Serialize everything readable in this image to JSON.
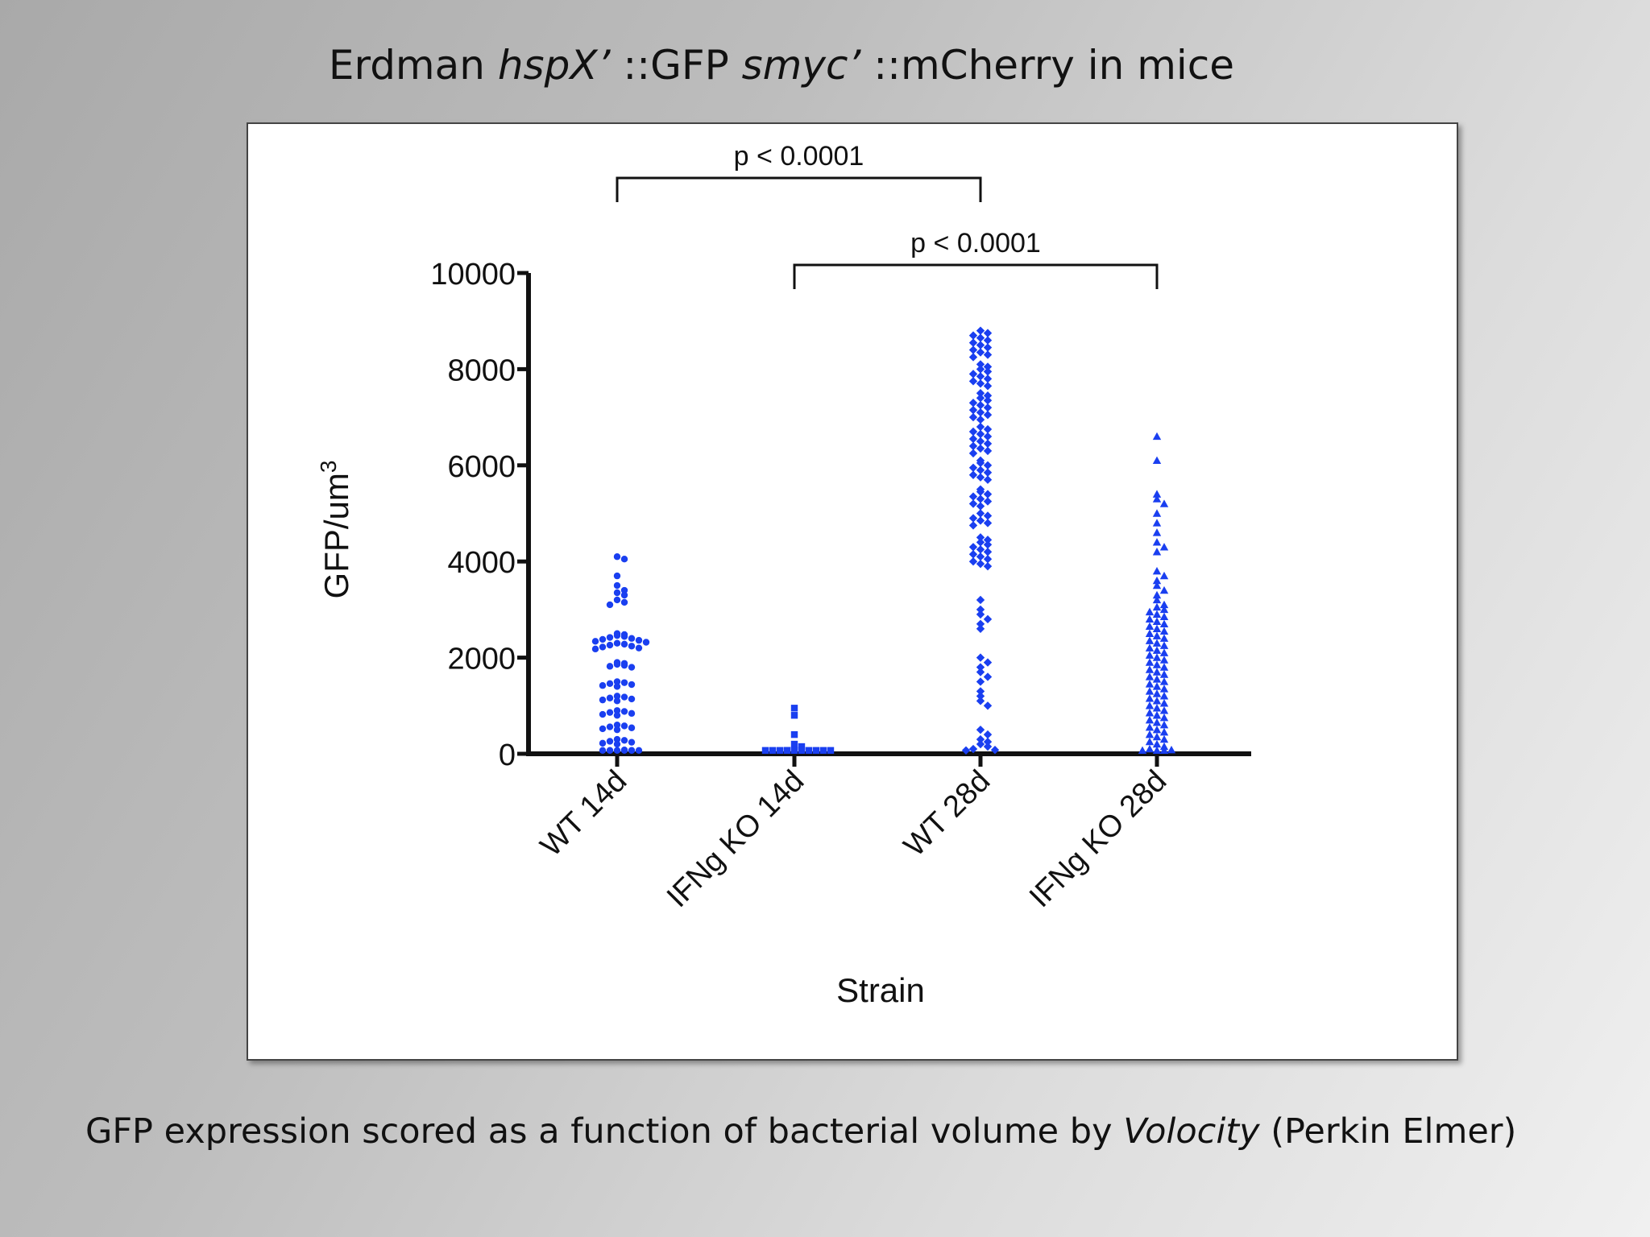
{
  "slide": {
    "title_parts": [
      "Erdman ",
      "hspX’",
      " ::GFP ",
      "smyc’",
      " ::mCherry in mice"
    ],
    "caption_parts": [
      "GFP expression scored as a function of bacterial volume by ",
      "Volocity",
      " (Perkin Elmer)"
    ]
  },
  "colors": {
    "points": "#1a3ff0",
    "axis": "#111111",
    "text": "#111111"
  },
  "chart_data": {
    "type": "scatter",
    "title": "",
    "xlabel": "Strain",
    "ylabel": "GFP/um³",
    "ylabel_base": "GFP/um",
    "ylabel_sup": "3",
    "ylim": [
      0,
      10000
    ],
    "yticks": [
      0,
      2000,
      4000,
      6000,
      8000,
      10000
    ],
    "ytick_labels": [
      "0",
      "2000",
      "4000",
      "6000",
      "8000",
      "10000"
    ],
    "grid": false,
    "categories": [
      "WT 14d",
      "IFNg KO 14d",
      "WT 28d",
      "IFNg KO 28d"
    ],
    "series": [
      {
        "category": "WT 14d",
        "marker": "circle",
        "values": [
          4100,
          4050,
          3700,
          3500,
          3400,
          3350,
          3300,
          3200,
          3150,
          3100,
          2500,
          2480,
          2460,
          2440,
          2420,
          2400,
          2380,
          2360,
          2340,
          2320,
          2300,
          2280,
          2260,
          2240,
          2220,
          2200,
          2180,
          1900,
          1880,
          1860,
          1840,
          1820,
          1800,
          1500,
          1480,
          1460,
          1440,
          1420,
          1400,
          1200,
          1180,
          1160,
          1140,
          1120,
          1100,
          900,
          880,
          860,
          840,
          820,
          800,
          600,
          580,
          560,
          540,
          520,
          500,
          300,
          280,
          260,
          240,
          220,
          200,
          80,
          70,
          60,
          50,
          40,
          30,
          20,
          10,
          5
        ]
      },
      {
        "category": "IFNg KO 14d",
        "marker": "square",
        "values": [
          950,
          800,
          400,
          200,
          150,
          60,
          50,
          40,
          30,
          30,
          20,
          20,
          10,
          10,
          5,
          5
        ]
      },
      {
        "category": "WT 28d",
        "marker": "diamond",
        "values": [
          8800,
          8750,
          8700,
          8650,
          8600,
          8550,
          8500,
          8450,
          8400,
          8350,
          8300,
          8250,
          8100,
          8050,
          8000,
          7950,
          7900,
          7850,
          7800,
          7750,
          7700,
          7650,
          7500,
          7450,
          7400,
          7350,
          7300,
          7250,
          7200,
          7150,
          7100,
          7050,
          7000,
          6950,
          6800,
          6750,
          6700,
          6650,
          6600,
          6550,
          6500,
          6450,
          6400,
          6350,
          6300,
          6250,
          6100,
          6050,
          6000,
          5950,
          5900,
          5850,
          5800,
          5750,
          5700,
          5500,
          5450,
          5400,
          5350,
          5300,
          5250,
          5200,
          5150,
          5000,
          4950,
          4900,
          4850,
          4800,
          4750,
          4500,
          4450,
          4400,
          4350,
          4300,
          4250,
          4200,
          4150,
          4100,
          4050,
          4000,
          3950,
          3900,
          3200,
          3000,
          2900,
          2800,
          2700,
          2600,
          2000,
          1900,
          1800,
          1700,
          1600,
          1500,
          1300,
          1200,
          1100,
          1000,
          500,
          400,
          300,
          250,
          200,
          150,
          100,
          80,
          60
        ]
      },
      {
        "category": "IFNg KO 28d",
        "marker": "triangle",
        "values": [
          6600,
          6100,
          5400,
          5300,
          5200,
          5000,
          4800,
          4600,
          4400,
          4300,
          4200,
          3800,
          3700,
          3600,
          3500,
          3400,
          3300,
          3200,
          3100,
          3050,
          3000,
          2950,
          2900,
          2850,
          2800,
          2750,
          2700,
          2650,
          2600,
          2550,
          2500,
          2450,
          2400,
          2350,
          2300,
          2250,
          2200,
          2150,
          2100,
          2050,
          2000,
          1950,
          1900,
          1850,
          1800,
          1750,
          1700,
          1650,
          1600,
          1550,
          1500,
          1450,
          1400,
          1350,
          1300,
          1250,
          1200,
          1150,
          1100,
          1050,
          1000,
          950,
          900,
          850,
          800,
          750,
          700,
          650,
          600,
          550,
          500,
          450,
          400,
          350,
          300,
          250,
          200,
          150,
          100,
          80,
          60,
          40,
          20
        ]
      }
    ],
    "annotations": [
      {
        "label": "p < 0.0001",
        "from": "WT 14d",
        "to": "WT 28d"
      },
      {
        "label": "p < 0.0001",
        "from": "IFNg KO 14d",
        "to": "IFNg KO 28d"
      }
    ]
  }
}
